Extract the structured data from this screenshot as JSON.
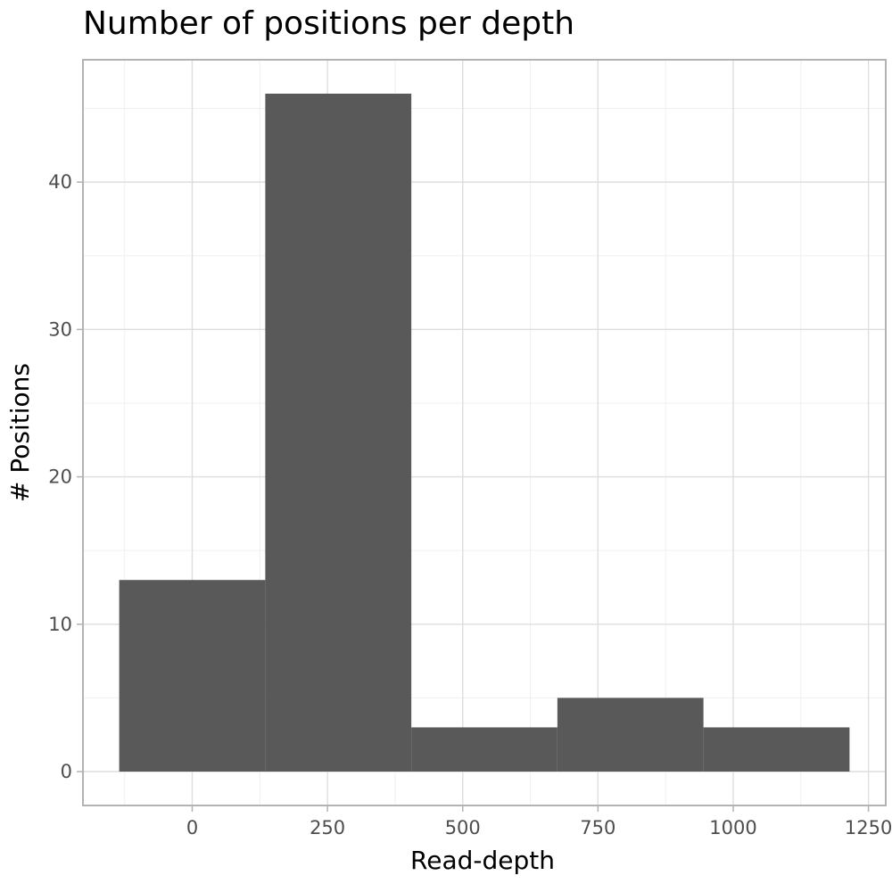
{
  "chart_data": {
    "type": "bar",
    "title": "Number of positions per depth",
    "xlabel": "Read-depth",
    "ylabel": "# Positions",
    "bins": [
      {
        "x0": -135,
        "x1": 135,
        "count": 13
      },
      {
        "x0": 135,
        "x1": 405,
        "count": 46
      },
      {
        "x0": 405,
        "x1": 675,
        "count": 3
      },
      {
        "x0": 675,
        "x1": 945,
        "count": 5
      },
      {
        "x0": 945,
        "x1": 1215,
        "count": 3
      }
    ],
    "xlim": [
      -202,
      1282
    ],
    "ylim": [
      -2.3,
      48.3
    ],
    "x_ticks": [
      0,
      250,
      500,
      750,
      1000,
      1250
    ],
    "x_tick_labels": [
      "0",
      "250",
      "500",
      "750",
      "1000",
      "1250"
    ],
    "y_ticks": [
      0,
      10,
      20,
      30,
      40
    ],
    "y_tick_labels": [
      "0",
      "10",
      "20",
      "30",
      "40"
    ],
    "grid": true,
    "bar_color": "#595959"
  }
}
